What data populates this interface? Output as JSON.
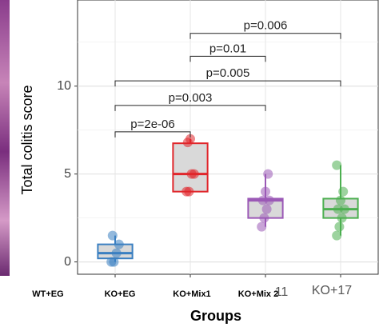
{
  "chart_data": {
    "type": "box",
    "y_label": "Total colitis score",
    "x_label": "Groups",
    "categories": [
      "KO+EG",
      "KO+Mix1",
      "KO+Mix 2",
      "KO+17"
    ],
    "extra_labels": [
      "WT+EG",
      "11"
    ],
    "ylim": [
      -0.7,
      14.9
    ],
    "yticks": [
      0,
      5,
      10
    ],
    "minor_yticks": [
      2.5,
      7.5,
      12.5
    ],
    "grid": true,
    "boxes": [
      {
        "color": "#3a7fc1",
        "whisker_low": 0,
        "q1": 0.2,
        "median": 0.5,
        "q3": 1.0,
        "whisker_high": 1.5,
        "points": [
          0,
          0,
          0.5,
          1,
          1.5
        ]
      },
      {
        "color": "#e0262b",
        "whisker_low": 4,
        "q1": 4,
        "median": 5,
        "q3": 6.75,
        "whisker_high": 7,
        "points": [
          4,
          4,
          5,
          5,
          6.8,
          7
        ]
      },
      {
        "color": "#9b59b6",
        "whisker_low": 2,
        "q1": 2.5,
        "median": 3.5,
        "q3": 3.6,
        "whisker_high": 5,
        "points": [
          2,
          2.5,
          3,
          3.5,
          3.5,
          4,
          5
        ]
      },
      {
        "color": "#4caf50",
        "whisker_low": 1.5,
        "q1": 2.5,
        "median": 3,
        "q3": 3.6,
        "whisker_high": 5.5,
        "points": [
          1.5,
          2,
          2.5,
          3,
          3,
          3.5,
          4,
          5.5
        ]
      }
    ],
    "brackets": [
      {
        "groups": [
          "KO+EG",
          "KO+Mix1"
        ],
        "y": 7.4,
        "label": "p=2e-06"
      },
      {
        "groups": [
          "KO+EG",
          "KO+Mix 2"
        ],
        "y": 8.9,
        "label": "p=0.003"
      },
      {
        "groups": [
          "KO+EG",
          "KO+17"
        ],
        "y": 10.3,
        "label": "p=0.005"
      },
      {
        "groups": [
          "KO+Mix1",
          "KO+Mix 2"
        ],
        "y": 11.7,
        "label": "p=0.01"
      },
      {
        "groups": [
          "KO+Mix1",
          "KO+17"
        ],
        "y": 13.0,
        "label": "p=0.006"
      }
    ]
  }
}
